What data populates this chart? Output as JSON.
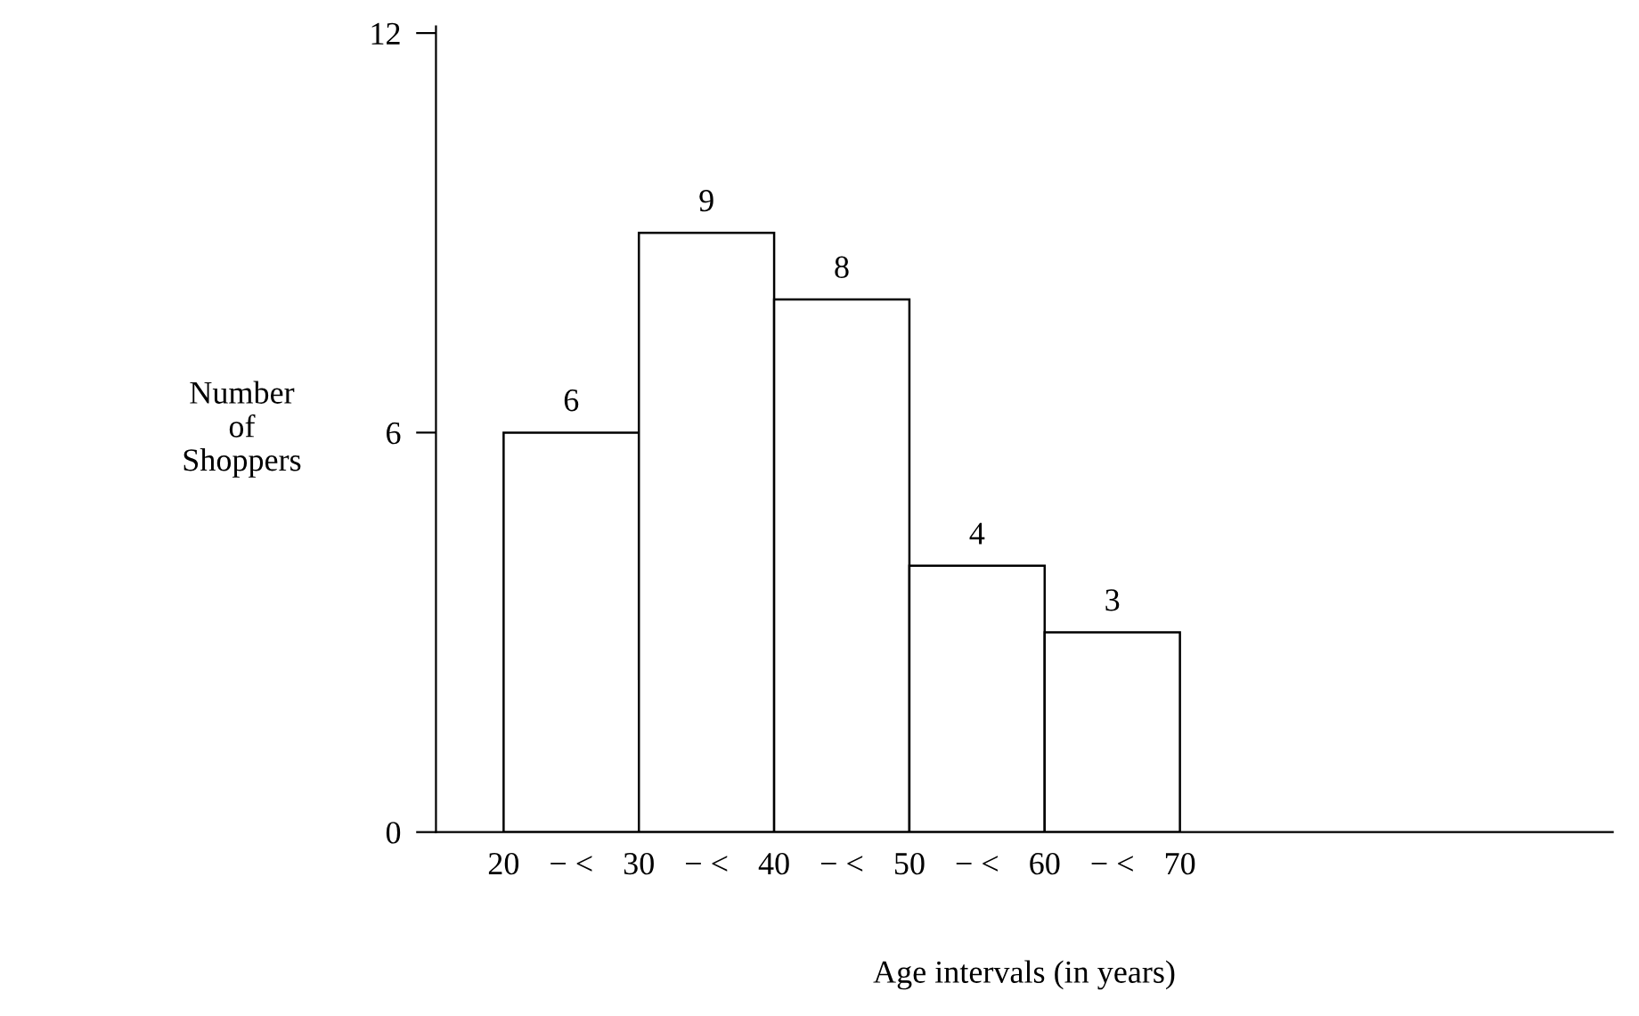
{
  "chart_data": {
    "type": "histogram",
    "xlabel": "Age intervals (in years)",
    "ylabel": "Number\nof\nShoppers",
    "bins": [
      20,
      30,
      40,
      50,
      60,
      70
    ],
    "values": [
      6,
      9,
      8,
      4,
      3
    ],
    "color": "#ffffff",
    "xlim": [
      15,
      102
    ],
    "ylim": [
      0,
      12.1
    ],
    "xticks": [
      20,
      {
        "value": 25,
        "label": "− <"
      },
      30,
      {
        "value": 35,
        "label": "− <"
      },
      40,
      {
        "value": 45,
        "label": "− <"
      },
      50,
      {
        "value": 55,
        "label": "− <"
      },
      60,
      {
        "value": 65,
        "label": "− <"
      },
      70
    ],
    "yticks": [
      0,
      6,
      12
    ],
    "data_labels": true,
    "grid": false,
    "legend": false
  }
}
